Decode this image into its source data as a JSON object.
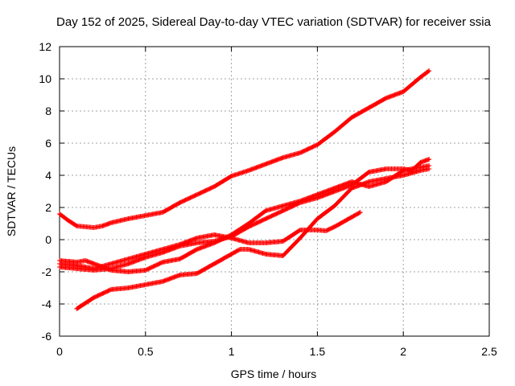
{
  "chart_data": {
    "type": "scatter",
    "title": "Day 152 of 2025, Sidereal Day-to-day VTEC variation (SDTVAR) for receiver ssia",
    "xlabel": "GPS time / hours",
    "ylabel": "SDTVAR / TECUs",
    "xlim": [
      0,
      2.5
    ],
    "ylim": [
      -6,
      12
    ],
    "x_ticks": [
      "0",
      "0.5",
      "1",
      "1.5",
      "2",
      "2.5"
    ],
    "y_ticks": [
      "-6",
      "-4",
      "-2",
      "0",
      "2",
      "4",
      "6",
      "8",
      "10",
      "12"
    ],
    "grid": true,
    "marker": "plus",
    "color": "#ff0000",
    "series": [
      {
        "points": [
          [
            0,
            1.6
          ],
          [
            0.05,
            1.2
          ],
          [
            0.1,
            0.85
          ],
          [
            0.15,
            0.8
          ],
          [
            0.2,
            0.75
          ],
          [
            0.25,
            0.85
          ],
          [
            0.3,
            1.05
          ],
          [
            0.4,
            1.3
          ],
          [
            0.5,
            1.5
          ],
          [
            0.6,
            1.7
          ],
          [
            0.7,
            2.3
          ],
          [
            0.8,
            2.8
          ],
          [
            0.9,
            3.3
          ],
          [
            1.0,
            3.95
          ],
          [
            1.1,
            4.3
          ],
          [
            1.2,
            4.7
          ],
          [
            1.3,
            5.1
          ],
          [
            1.4,
            5.4
          ],
          [
            1.5,
            5.9
          ],
          [
            1.6,
            6.7
          ],
          [
            1.7,
            7.6
          ],
          [
            1.8,
            8.2
          ],
          [
            1.9,
            8.8
          ],
          [
            2.0,
            9.2
          ],
          [
            2.1,
            10.1
          ],
          [
            2.15,
            10.5
          ]
        ]
      },
      {
        "points": [
          [
            0,
            -1.5
          ],
          [
            0.1,
            -1.6
          ],
          [
            0.2,
            -1.8
          ],
          [
            0.3,
            -1.5
          ],
          [
            0.4,
            -1.2
          ],
          [
            0.5,
            -0.9
          ],
          [
            0.6,
            -0.6
          ],
          [
            0.7,
            -0.3
          ],
          [
            0.8,
            0.1
          ],
          [
            0.9,
            0.3
          ],
          [
            1.0,
            0.1
          ],
          [
            1.1,
            -0.2
          ],
          [
            1.2,
            -0.2
          ],
          [
            1.3,
            -0.1
          ],
          [
            1.4,
            0.6
          ],
          [
            1.5,
            0.6
          ],
          [
            1.55,
            0.55
          ],
          [
            1.6,
            0.8
          ],
          [
            1.7,
            1.4
          ],
          [
            1.75,
            1.7
          ]
        ]
      },
      {
        "points": [
          [
            0.1,
            -4.3
          ],
          [
            0.2,
            -3.6
          ],
          [
            0.3,
            -3.1
          ],
          [
            0.4,
            -3.0
          ],
          [
            0.5,
            -2.8
          ],
          [
            0.6,
            -2.6
          ],
          [
            0.7,
            -2.2
          ],
          [
            0.8,
            -2.1
          ],
          [
            0.9,
            -1.5
          ],
          [
            1.0,
            -0.9
          ],
          [
            1.05,
            -0.6
          ],
          [
            1.1,
            -0.6
          ],
          [
            1.2,
            -0.9
          ],
          [
            1.3,
            -1.0
          ],
          [
            1.4,
            0.1
          ],
          [
            1.5,
            1.3
          ],
          [
            1.6,
            2.1
          ],
          [
            1.7,
            3.2
          ],
          [
            1.8,
            3.6
          ],
          [
            1.9,
            3.8
          ],
          [
            2.0,
            4.0
          ],
          [
            2.1,
            4.3
          ],
          [
            2.15,
            4.4
          ]
        ]
      },
      {
        "points": [
          [
            0,
            -1.3
          ],
          [
            0.1,
            -1.4
          ],
          [
            0.15,
            -1.3
          ],
          [
            0.2,
            -1.5
          ],
          [
            0.3,
            -1.9
          ],
          [
            0.4,
            -2.0
          ],
          [
            0.5,
            -1.9
          ],
          [
            0.6,
            -1.4
          ],
          [
            0.7,
            -1.2
          ],
          [
            0.8,
            -0.6
          ],
          [
            0.9,
            -0.2
          ],
          [
            1.0,
            0.3
          ],
          [
            1.1,
            1.0
          ],
          [
            1.2,
            1.8
          ],
          [
            1.3,
            2.1
          ],
          [
            1.4,
            2.4
          ],
          [
            1.5,
            2.8
          ],
          [
            1.6,
            3.2
          ],
          [
            1.7,
            3.6
          ],
          [
            1.8,
            3.3
          ],
          [
            1.9,
            3.6
          ],
          [
            2.0,
            4.3
          ],
          [
            2.1,
            4.5
          ],
          [
            2.15,
            4.6
          ]
        ]
      },
      {
        "points": [
          [
            0,
            -1.7
          ],
          [
            0.1,
            -1.8
          ],
          [
            0.2,
            -1.9
          ],
          [
            0.3,
            -1.8
          ],
          [
            0.4,
            -1.5
          ],
          [
            0.5,
            -1.1
          ],
          [
            0.6,
            -0.8
          ],
          [
            0.7,
            -0.4
          ],
          [
            0.8,
            -0.2
          ],
          [
            0.9,
            -0.1
          ],
          [
            1.0,
            0.2
          ],
          [
            1.1,
            0.8
          ],
          [
            1.2,
            1.3
          ],
          [
            1.3,
            1.8
          ],
          [
            1.4,
            2.3
          ],
          [
            1.5,
            2.6
          ],
          [
            1.6,
            3.0
          ],
          [
            1.7,
            3.4
          ],
          [
            1.8,
            4.2
          ],
          [
            1.9,
            4.4
          ],
          [
            2.0,
            4.4
          ],
          [
            2.05,
            4.3
          ],
          [
            2.1,
            4.8
          ],
          [
            2.15,
            5.0
          ]
        ]
      }
    ]
  }
}
